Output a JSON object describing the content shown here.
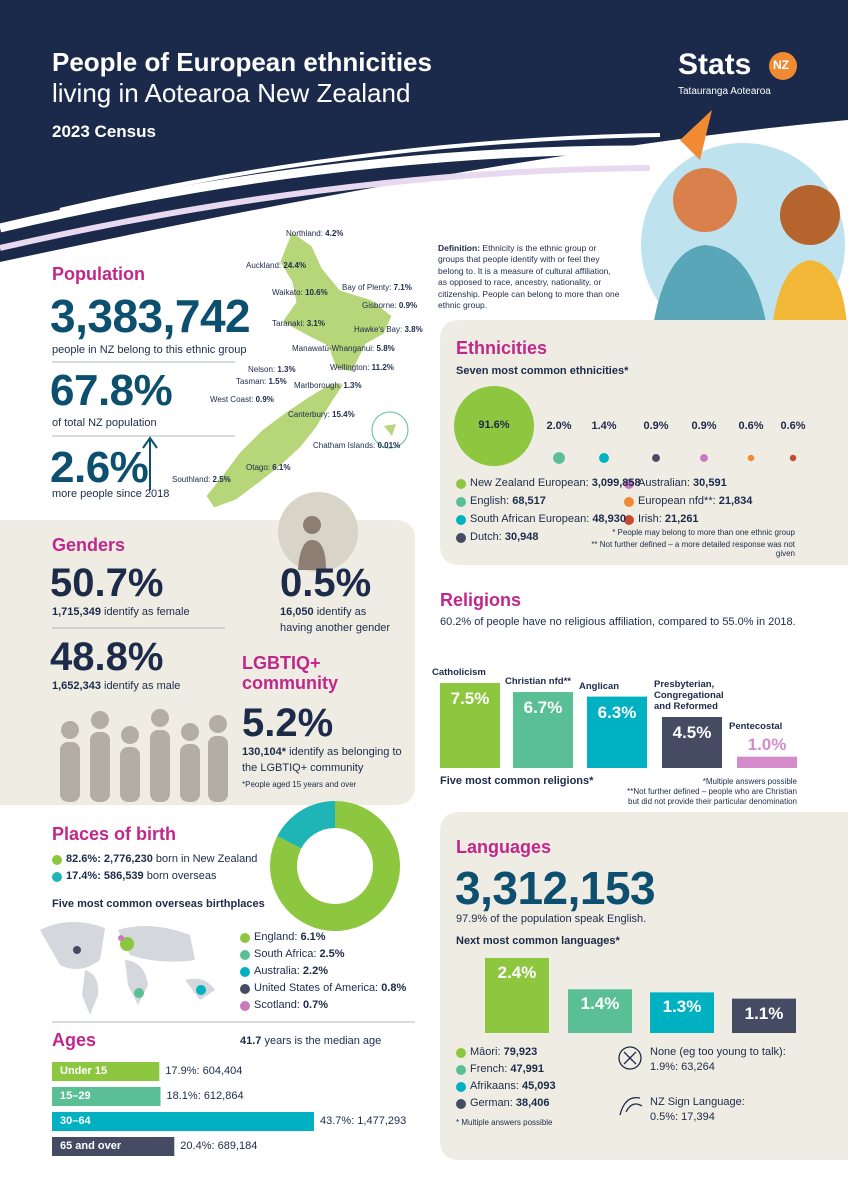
{
  "header": {
    "title": "People of European ethnicities",
    "title_line2": "living in Aotearoa New Zealand",
    "subtitle": "2023 Census",
    "logo": "Stats",
    "logo_badge": "NZ",
    "logo_tagline": "Tatauranga Aotearoa"
  },
  "definition": {
    "label": "Definition:",
    "text": "Ethnicity is the ethnic group or groups that people identify with or feel they belong to. It is a measure of cultural affiliation, as opposed to race, ancestry, nationality, or citizenship. People can belong to more than one ethnic group."
  },
  "population": {
    "title": "Population",
    "count": "3,383,742",
    "count_caption": "people in NZ belong to this ethnic group",
    "share": "67.8%",
    "share_caption": "of total NZ population",
    "growth": "2.6%",
    "growth_caption": "more people since 2018",
    "regions": [
      {
        "name": "Northland:",
        "value": "4.2%"
      },
      {
        "name": "Auckland:",
        "value": "24.4%"
      },
      {
        "name": "Bay of Plenty:",
        "value": "7.1%"
      },
      {
        "name": "Waikato:",
        "value": "10.6%"
      },
      {
        "name": "Gisborne:",
        "value": "0.9%"
      },
      {
        "name": "Taranaki:",
        "value": "3.1%"
      },
      {
        "name": "Hawke's Bay:",
        "value": "3.8%"
      },
      {
        "name": "Manawatū-Whanganui:",
        "value": "5.8%"
      },
      {
        "name": "Wellington:",
        "value": "11.2%"
      },
      {
        "name": "Nelson:",
        "value": "1.3%"
      },
      {
        "name": "Tasman:",
        "value": "1.5%"
      },
      {
        "name": "Marlborough:",
        "value": "1.3%"
      },
      {
        "name": "West Coast:",
        "value": "0.9%"
      },
      {
        "name": "Canterbury:",
        "value": "15.4%"
      },
      {
        "name": "Chatham Islands:",
        "value": "0.01%"
      },
      {
        "name": "Otago:",
        "value": "6.1%"
      },
      {
        "name": "Southland:",
        "value": "2.5%"
      }
    ]
  },
  "ethnicities": {
    "title": "Ethnicities",
    "subtitle": "Seven most common ethnicities*",
    "type": "bubble",
    "categories": [
      "New Zealand European:",
      "English:",
      "South African European:",
      "Dutch:",
      "Australian:",
      "European nfd**:",
      "Irish:"
    ],
    "counts": [
      "3,099,858",
      "68,517",
      "48,930",
      "30,948",
      "30,591",
      "21,834",
      "21,261"
    ],
    "values": [
      91.6,
      2.0,
      1.4,
      0.9,
      0.9,
      0.6,
      0.6
    ],
    "value_labels": [
      "91.6%",
      "2.0%",
      "1.4%",
      "0.9%",
      "0.9%",
      "0.6%",
      "0.6%"
    ],
    "colors": [
      "#8dc63f",
      "#5bbf95",
      "#00b1c1",
      "#444b63",
      "#c77bbd",
      "#f08b33",
      "#c84b31"
    ],
    "footnotes": [
      "* People may belong to more than one ethnic group",
      "** Not further defined – a more detailed response was not given"
    ]
  },
  "genders": {
    "title": "Genders",
    "female_share": "50.7%",
    "female_count": "1,715,349",
    "female_caption": "identify as female",
    "male_share": "48.8%",
    "male_count": "1,652,343",
    "male_caption": "identify as male",
    "other_share": "0.5%",
    "other_count": "16,050",
    "other_caption": "identify as",
    "other_caption2": "having another gender",
    "lgbtiq_title": "LGBTIQ+ community",
    "lgbtiq_share": "5.2%",
    "lgbtiq_count": "130,104*",
    "lgbtiq_caption": "identify as belonging to",
    "lgbtiq_caption2": "the LGBTIQ+ community",
    "lgbtiq_note": "*People aged 15 years and over"
  },
  "religions": {
    "title": "Religions",
    "note": "60.2% of people have no religious affiliation, compared to 55.0% in 2018.",
    "type": "bar",
    "categories": [
      "Catholicism",
      "Christian nfd**",
      "Anglican",
      "Presbyterian, Congregational and Reformed",
      "Pentecostal"
    ],
    "values": [
      7.5,
      6.7,
      6.3,
      4.5,
      1.0
    ],
    "value_labels": [
      "7.5%",
      "6.7%",
      "6.3%",
      "4.5%",
      "1.0%"
    ],
    "colors": [
      "#8dc63f",
      "#5bbf95",
      "#00b1c1",
      "#444b63",
      "#d58bc9"
    ],
    "caption": "Five most common religions*",
    "footnotes": [
      "*Multiple answers possible",
      "**Not further defined – people who are Christian",
      "but did not provide their particular denomination"
    ]
  },
  "places_of_birth": {
    "title": "Places of birth",
    "type": "donut",
    "categories": [
      "born in New Zealand",
      "born overseas"
    ],
    "values": [
      82.6,
      17.4
    ],
    "value_labels": [
      "82.6%: 2,776,230",
      "17.4%: 586,539"
    ],
    "colors": [
      "#8dc63f",
      "#1fb5b7"
    ],
    "subtitle": "Five most common overseas birthplaces",
    "birthplaces": [
      "England:",
      "South Africa:",
      "Australia:",
      "United States of America:",
      "Scotland:"
    ],
    "birthplace_labels": [
      "6.1%",
      "2.5%",
      "2.2%",
      "0.8%",
      "0.7%"
    ],
    "birthplace_colors": [
      "#8dc63f",
      "#5bbf95",
      "#00b1c1",
      "#444b63",
      "#c77bbd"
    ]
  },
  "ages": {
    "title": "Ages",
    "median": "41.7",
    "median_caption": "years is the median age",
    "type": "hbar",
    "categories": [
      "Under 15",
      "15–29",
      "30–64",
      "65 and over"
    ],
    "values": [
      17.9,
      18.1,
      43.7,
      20.4
    ],
    "value_labels": [
      "17.9%: 604,404",
      "18.1%: 612,864",
      "43.7%: 1,477,293",
      "20.4%: 689,184"
    ],
    "colors": [
      "#8dc63f",
      "#5bbf95",
      "#00b1c1",
      "#444b63"
    ]
  },
  "languages": {
    "title": "Languages",
    "count": "3,312,153",
    "caption": "97.9% of the population speak English.",
    "subtitle": "Next most common languages*",
    "type": "bar",
    "categories": [
      "Māori:",
      "French:",
      "Afrikaans:",
      "German:"
    ],
    "counts": [
      "79,923",
      "47,991",
      "45,093",
      "38,406"
    ],
    "values": [
      2.4,
      1.4,
      1.3,
      1.1
    ],
    "value_labels": [
      "2.4%",
      "1.4%",
      "1.3%",
      "1.1%"
    ],
    "colors": [
      "#8dc63f",
      "#5bbf95",
      "#00b1c1",
      "#444b63"
    ],
    "none_label": "None (eg too young to talk):",
    "none_value": "1.9%: 63,264",
    "sign_label": "NZ Sign Language:",
    "sign_value": "0.5%: 17,394",
    "footnote": "* Multiple answers possible"
  }
}
